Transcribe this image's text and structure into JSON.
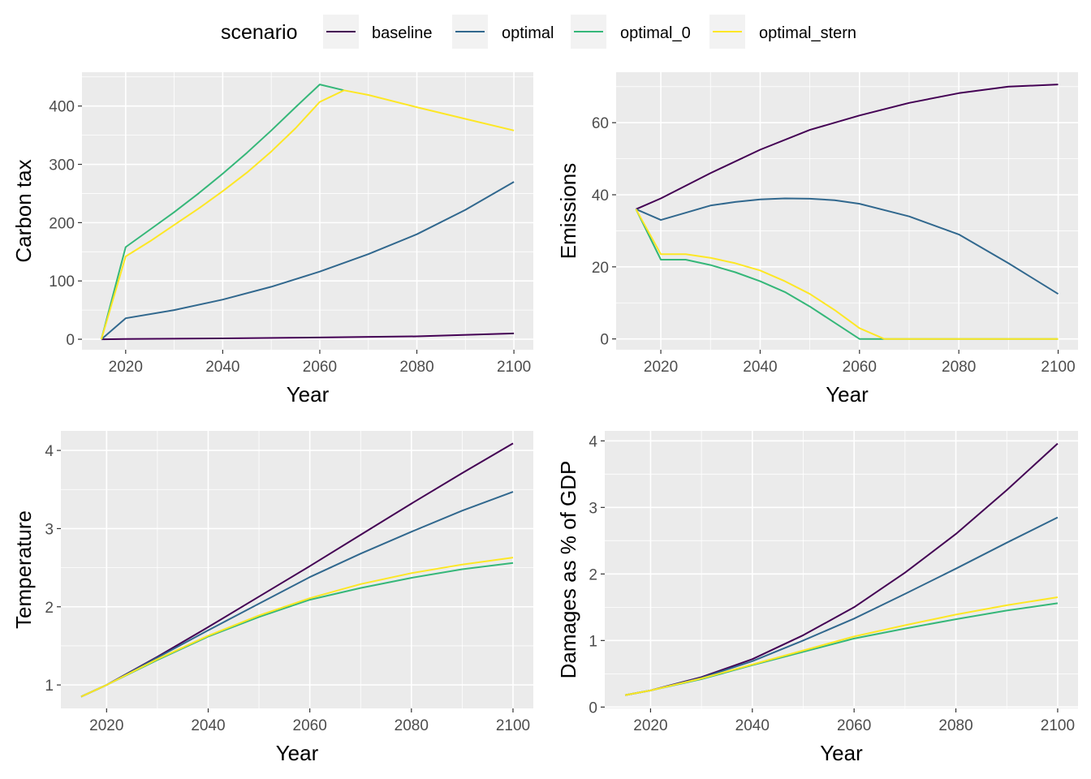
{
  "legend": {
    "title": "scenario",
    "position": "top",
    "items": [
      {
        "label": "baseline",
        "color": "#440154"
      },
      {
        "label": "optimal",
        "color": "#31688e"
      },
      {
        "label": "optimal_0",
        "color": "#35b779"
      },
      {
        "label": "optimal_stern",
        "color": "#fde725"
      }
    ]
  },
  "chart_data": [
    {
      "type": "line",
      "title": "",
      "xlabel": "Year",
      "ylabel": "Carbon tax",
      "xlim": [
        2011,
        2104
      ],
      "ylim": [
        -18,
        458
      ],
      "xticks": [
        2020,
        2040,
        2060,
        2080,
        2100
      ],
      "yticks": [
        0,
        100,
        200,
        300,
        400
      ],
      "grid": true,
      "series": [
        {
          "name": "baseline",
          "x": [
            2015,
            2020,
            2040,
            2060,
            2080,
            2100
          ],
          "y": [
            0,
            0.5,
            1.5,
            3,
            5,
            10
          ]
        },
        {
          "name": "optimal",
          "x": [
            2015,
            2020,
            2030,
            2040,
            2050,
            2060,
            2070,
            2080,
            2090,
            2100
          ],
          "y": [
            0,
            36,
            50,
            68,
            90,
            116,
            146,
            180,
            222,
            270
          ]
        },
        {
          "name": "optimal_0",
          "x": [
            2015,
            2020,
            2025,
            2030,
            2035,
            2040,
            2045,
            2050,
            2055,
            2060,
            2065
          ],
          "y": [
            0,
            158,
            188,
            218,
            250,
            284,
            320,
            358,
            398,
            437,
            427
          ]
        },
        {
          "name": "optimal_stern",
          "x": [
            2015,
            2020,
            2025,
            2030,
            2035,
            2040,
            2045,
            2050,
            2055,
            2060,
            2065,
            2070,
            2080,
            2090,
            2100
          ],
          "y": [
            0,
            142,
            168,
            196,
            224,
            254,
            286,
            322,
            362,
            407,
            427,
            419,
            398,
            378,
            358
          ]
        }
      ]
    },
    {
      "type": "line",
      "title": "",
      "xlabel": "Year",
      "ylabel": "Emissions",
      "xlim": [
        2011,
        2104
      ],
      "ylim": [
        -3,
        74
      ],
      "xticks": [
        2020,
        2040,
        2060,
        2080,
        2100
      ],
      "yticks": [
        0,
        20,
        40,
        60
      ],
      "grid": true,
      "series": [
        {
          "name": "baseline",
          "x": [
            2015,
            2020,
            2030,
            2040,
            2050,
            2060,
            2070,
            2080,
            2090,
            2100
          ],
          "y": [
            36,
            39,
            46,
            52.5,
            58,
            62,
            65.5,
            68.2,
            70,
            70.6
          ]
        },
        {
          "name": "optimal",
          "x": [
            2015,
            2020,
            2025,
            2030,
            2035,
            2040,
            2045,
            2050,
            2055,
            2060,
            2070,
            2080,
            2090,
            2100
          ],
          "y": [
            36,
            33,
            35,
            37,
            38,
            38.7,
            39,
            38.9,
            38.5,
            37.5,
            34,
            29,
            21,
            12.5
          ]
        },
        {
          "name": "optimal_0",
          "x": [
            2015,
            2020,
            2025,
            2030,
            2035,
            2040,
            2045,
            2050,
            2055,
            2060,
            2065,
            2070,
            2080,
            2090,
            2100
          ],
          "y": [
            36,
            22,
            22,
            20.5,
            18.5,
            16,
            13,
            9,
            4.5,
            0,
            0,
            0,
            0,
            0,
            0
          ]
        },
        {
          "name": "optimal_stern",
          "x": [
            2015,
            2020,
            2025,
            2030,
            2035,
            2040,
            2045,
            2050,
            2055,
            2060,
            2065,
            2070,
            2080,
            2090,
            2100
          ],
          "y": [
            36,
            23.5,
            23.5,
            22.5,
            21,
            19,
            16,
            12.5,
            8,
            3,
            0,
            0,
            0,
            0,
            0
          ]
        }
      ]
    },
    {
      "type": "line",
      "title": "",
      "xlabel": "Year",
      "ylabel": "Temperature",
      "xlim": [
        2011,
        2104
      ],
      "ylim": [
        0.7,
        4.25
      ],
      "xticks": [
        2020,
        2040,
        2060,
        2080,
        2100
      ],
      "yticks": [
        1,
        2,
        3,
        4
      ],
      "grid": true,
      "series": [
        {
          "name": "baseline",
          "x": [
            2015,
            2020,
            2030,
            2040,
            2050,
            2060,
            2070,
            2080,
            2090,
            2100
          ],
          "y": [
            0.85,
            1.0,
            1.36,
            1.74,
            2.13,
            2.52,
            2.92,
            3.32,
            3.71,
            4.09
          ]
        },
        {
          "name": "optimal",
          "x": [
            2015,
            2020,
            2030,
            2040,
            2050,
            2060,
            2070,
            2080,
            2090,
            2100
          ],
          "y": [
            0.85,
            1.0,
            1.35,
            1.7,
            2.04,
            2.38,
            2.68,
            2.96,
            3.23,
            3.47
          ]
        },
        {
          "name": "optimal_0",
          "x": [
            2015,
            2020,
            2030,
            2040,
            2050,
            2060,
            2070,
            2080,
            2090,
            2100
          ],
          "y": [
            0.85,
            1.0,
            1.32,
            1.62,
            1.87,
            2.09,
            2.24,
            2.37,
            2.48,
            2.56
          ]
        },
        {
          "name": "optimal_stern",
          "x": [
            2015,
            2020,
            2030,
            2040,
            2050,
            2060,
            2070,
            2080,
            2090,
            2100
          ],
          "y": [
            0.85,
            1.0,
            1.33,
            1.63,
            1.89,
            2.11,
            2.29,
            2.43,
            2.54,
            2.63
          ]
        }
      ]
    },
    {
      "type": "line",
      "title": "",
      "xlabel": "Year",
      "ylabel": "Damages as % of GDP",
      "xlim": [
        2011,
        2104
      ],
      "ylim": [
        -0.02,
        4.15
      ],
      "xticks": [
        2020,
        2040,
        2060,
        2080,
        2100
      ],
      "yticks": [
        0,
        1,
        2,
        3,
        4
      ],
      "grid": true,
      "series": [
        {
          "name": "baseline",
          "x": [
            2015,
            2020,
            2030,
            2040,
            2050,
            2060,
            2070,
            2080,
            2090,
            2100
          ],
          "y": [
            0.18,
            0.25,
            0.45,
            0.72,
            1.08,
            1.5,
            2.02,
            2.6,
            3.26,
            3.96
          ]
        },
        {
          "name": "optimal",
          "x": [
            2015,
            2020,
            2030,
            2040,
            2050,
            2060,
            2070,
            2080,
            2090,
            2100
          ],
          "y": [
            0.18,
            0.25,
            0.44,
            0.69,
            1.0,
            1.33,
            1.7,
            2.08,
            2.47,
            2.85
          ]
        },
        {
          "name": "optimal_0",
          "x": [
            2015,
            2020,
            2030,
            2040,
            2050,
            2060,
            2070,
            2080,
            2090,
            2100
          ],
          "y": [
            0.18,
            0.25,
            0.42,
            0.63,
            0.83,
            1.03,
            1.18,
            1.32,
            1.45,
            1.56
          ]
        },
        {
          "name": "optimal_stern",
          "x": [
            2015,
            2020,
            2030,
            2040,
            2050,
            2060,
            2070,
            2080,
            2090,
            2100
          ],
          "y": [
            0.18,
            0.25,
            0.43,
            0.64,
            0.85,
            1.06,
            1.23,
            1.39,
            1.53,
            1.65
          ]
        }
      ]
    }
  ]
}
